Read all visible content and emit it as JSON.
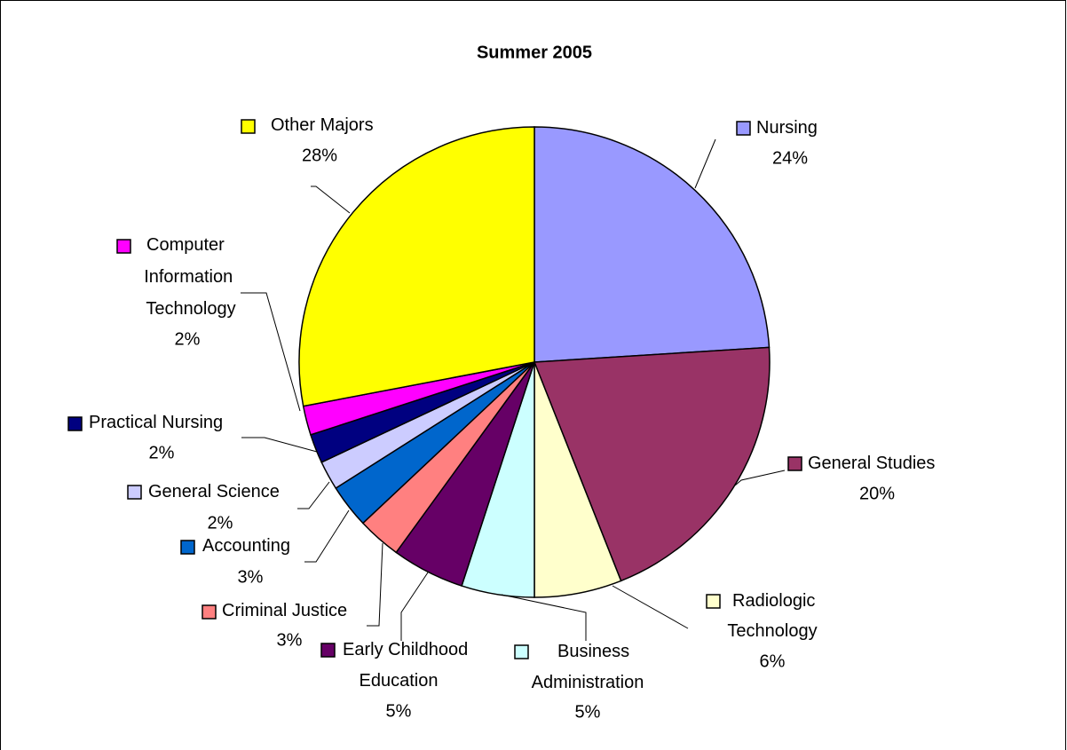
{
  "chart_data": {
    "type": "pie",
    "title": "Summer 2005",
    "categories": [
      "Nursing",
      "General Studies",
      "Radiologic Technology",
      "Business Administration",
      "Early Childhood Education",
      "Criminal Justice",
      "Accounting",
      "General Science",
      "Practical Nursing",
      "Computer Information Technology",
      "Other Majors"
    ],
    "values": [
      24,
      20,
      6,
      5,
      5,
      3,
      3,
      2,
      2,
      2,
      28
    ],
    "value_labels": [
      "24%",
      "20%",
      "6%",
      "5%",
      "5%",
      "3%",
      "3%",
      "2%",
      "2%",
      "2%",
      "28%"
    ],
    "colors": [
      "#9999ff",
      "#993366",
      "#ffffcc",
      "#ccffff",
      "#660066",
      "#ff8080",
      "#0066cc",
      "#ccccff",
      "#000080",
      "#ff00ff",
      "#ffff00"
    ]
  }
}
